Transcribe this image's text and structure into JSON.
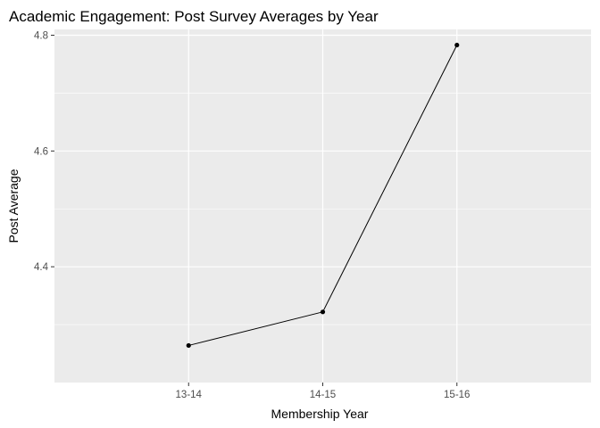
{
  "chart_data": {
    "type": "line",
    "title": "Academic Engagement: Post Survey Averages by Year",
    "xlabel": "Membership Year",
    "ylabel": "Post Average",
    "categories": [
      "13-14",
      "14-15",
      "15-16"
    ],
    "values": [
      4.264,
      4.322,
      4.783
    ],
    "ylim": [
      4.2,
      4.81
    ],
    "yticks": [
      4.4,
      4.6,
      4.8
    ],
    "yticks_labels": [
      "4.4",
      "4.6",
      "4.8"
    ],
    "grid": true,
    "colors": {
      "panel": "#ebebeb",
      "grid": "#ffffff",
      "line": "#000000",
      "point": "#000000",
      "tick": "#333333"
    }
  }
}
